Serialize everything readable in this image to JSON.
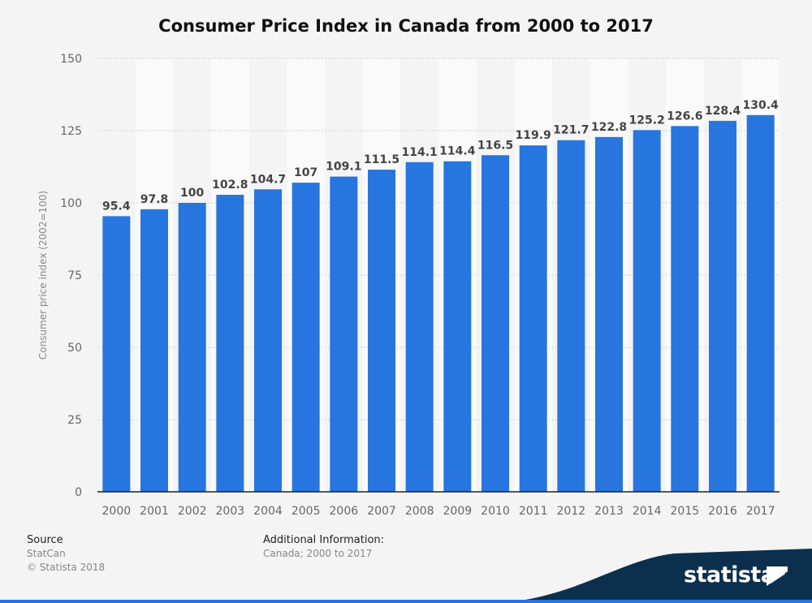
{
  "chart_data": {
    "type": "bar",
    "title": "Consumer Price Index in Canada from 2000 to 2017",
    "xlabel": "",
    "ylabel": "Consumer price index (2002=100)",
    "ylim": [
      0,
      150
    ],
    "yticks": [
      0,
      25,
      50,
      75,
      100,
      125,
      150
    ],
    "categories": [
      "2000",
      "2001",
      "2002",
      "2003",
      "2004",
      "2005",
      "2006",
      "2007",
      "2008",
      "2009",
      "2010",
      "2011",
      "2012",
      "2013",
      "2014",
      "2015",
      "2016",
      "2017"
    ],
    "values": [
      95.4,
      97.8,
      100,
      102.8,
      104.7,
      107,
      109.1,
      111.5,
      114.1,
      114.4,
      116.5,
      119.9,
      121.7,
      122.8,
      125.2,
      126.6,
      128.4,
      130.4
    ],
    "value_labels": [
      "95.4",
      "97.8",
      "100",
      "102.8",
      "104.7",
      "107",
      "109.1",
      "111.5",
      "114.1",
      "114.4",
      "116.5",
      "119.9",
      "121.7",
      "122.8",
      "125.2",
      "126.6",
      "128.4",
      "130.4"
    ],
    "grid": true,
    "bar_color": "#2775df"
  },
  "footer": {
    "source_heading": "Source",
    "source_name": "StatCan",
    "copyright": "© Statista 2018",
    "info_heading": "Additional Information:",
    "info_text": "Canada; 2000 to 2017"
  },
  "brand": {
    "name": "statista",
    "icon": "statista-logo-icon",
    "color": "#0c2f4d"
  }
}
